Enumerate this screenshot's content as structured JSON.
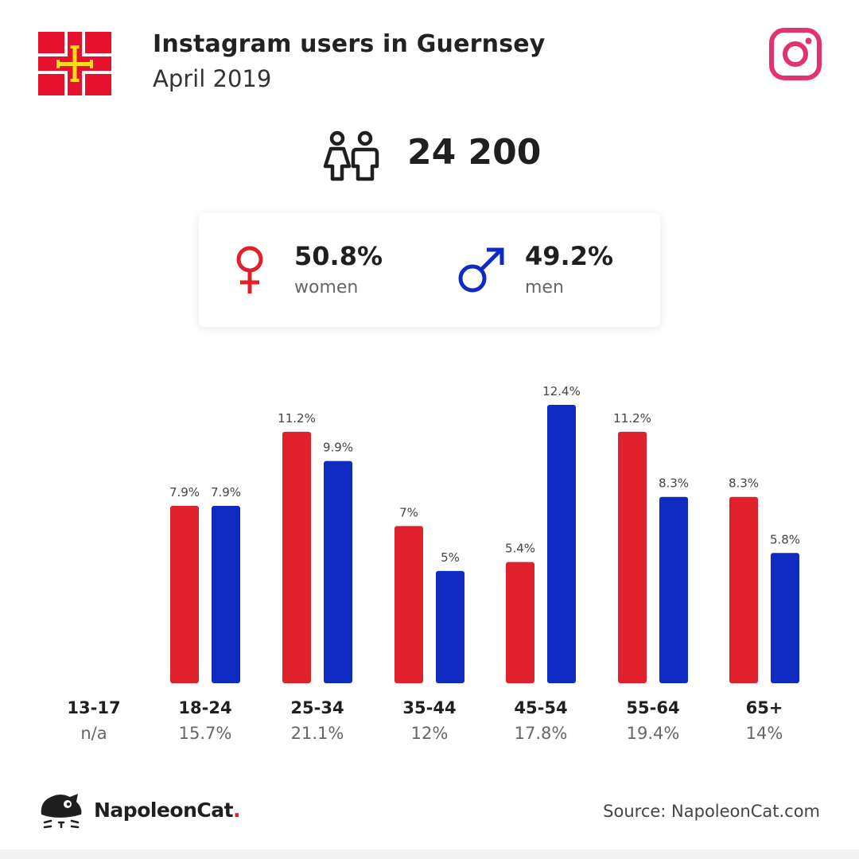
{
  "header": {
    "title": "Instagram users in Guernsey",
    "subtitle": "April 2019"
  },
  "total_users": "24 200",
  "gender": {
    "women_pct": "50.8%",
    "women_label": "women",
    "men_pct": "49.2%",
    "men_label": "men"
  },
  "colors": {
    "women": "#e0202a",
    "men": "#0f2bc1",
    "instagram": "#e3336e",
    "flag_red": "#e8112d",
    "flag_yellow": "#f9dd16"
  },
  "icons": [
    "guernsey-flag",
    "instagram-icon",
    "people-icon",
    "female-symbol-icon",
    "male-symbol-icon",
    "napoleoncat-logo-icon"
  ],
  "chart_data": {
    "type": "bar",
    "categories": [
      "13-17",
      "18-24",
      "25-34",
      "35-44",
      "45-54",
      "55-64",
      "65+"
    ],
    "category_shares": [
      "n/a",
      "15.7%",
      "21.1%",
      "12%",
      "17.8%",
      "19.4%",
      "14%"
    ],
    "series": [
      {
        "name": "women",
        "values": [
          null,
          7.9,
          11.2,
          7,
          5.4,
          11.2,
          8.3
        ],
        "labels": [
          "",
          "7.9%",
          "11.2%",
          "7%",
          "5.4%",
          "11.2%",
          "8.3%"
        ]
      },
      {
        "name": "men",
        "values": [
          null,
          7.9,
          9.9,
          5,
          12.4,
          8.3,
          5.8
        ],
        "labels": [
          "",
          "7.9%",
          "9.9%",
          "5%",
          "12.4%",
          "8.3%",
          "5.8%"
        ]
      }
    ],
    "ylim": [
      0,
      12.4
    ],
    "grid": false,
    "title": "",
    "xlabel": "",
    "ylabel": ""
  },
  "footer": {
    "brand_name": "NapoleonCat",
    "brand_dot": ".",
    "source": "Source: NapoleonCat.com"
  }
}
